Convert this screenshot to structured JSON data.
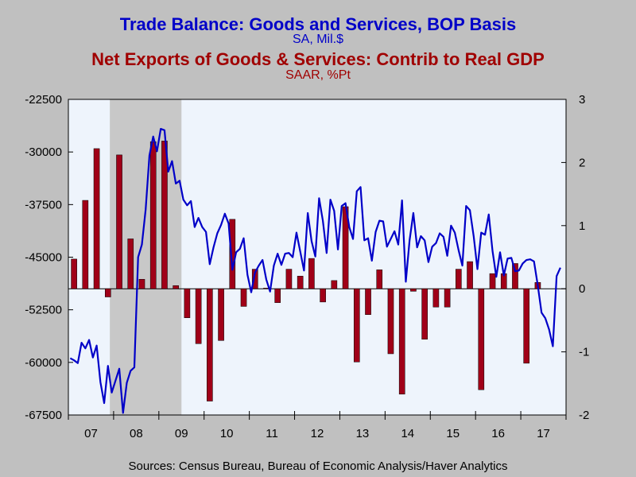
{
  "titles": {
    "line1": "Trade Balance:  Goods and Services, BOP Basis",
    "line1_sub": "SA, Mil.$",
    "line2": "Net Exports of Goods & Services: Contrib to Real GDP",
    "line2_sub": "SAAR, %Pt"
  },
  "source": "Sources:  Census Bureau, Bureau of Economic Analysis/Haver Analytics",
  "colors": {
    "background": "#c0c0c0",
    "plot_background": "#eef4fc",
    "recession": "#c8c8c8",
    "line": "#0000c8",
    "bars": "#a00018",
    "title1": "#0000c8",
    "title2": "#a00000"
  },
  "chart_data": {
    "type": "bar+line",
    "x_range": [
      2007.0,
      2018.0
    ],
    "left_axis": {
      "ylim": [
        -67500,
        -22500
      ],
      "ticks": [
        -22500,
        -30000,
        -37500,
        -45000,
        -52500,
        -60000,
        -67500
      ],
      "tick_labels": [
        "-22500",
        "-30000",
        "-37500",
        "-45000",
        "-52500",
        "-60000",
        "-67500"
      ]
    },
    "right_axis": {
      "ylim": [
        -2,
        3
      ],
      "ticks": [
        3,
        2,
        1,
        0,
        -1,
        -2
      ],
      "tick_labels": [
        "3",
        "2",
        "1",
        "0",
        "-1",
        "-2"
      ]
    },
    "x_tick_labels": [
      {
        "label": "07",
        "x": 2007.5
      },
      {
        "label": "08",
        "x": 2008.5
      },
      {
        "label": "09",
        "x": 2009.5
      },
      {
        "label": "10",
        "x": 2010.5
      },
      {
        "label": "11",
        "x": 2011.5
      },
      {
        "label": "12",
        "x": 2012.5
      },
      {
        "label": "13",
        "x": 2013.5
      },
      {
        "label": "14",
        "x": 2014.5
      },
      {
        "label": "15",
        "x": 2015.5
      },
      {
        "label": "16",
        "x": 2016.5
      },
      {
        "label": "17",
        "x": 2017.5
      }
    ],
    "recession": {
      "start": "2007-12",
      "end": "2009-06"
    },
    "series": [
      {
        "name": "Trade Balance: Goods and Services, BOP Basis (SA, Mil.$)",
        "axis": "left",
        "type": "line",
        "start": "2007-01",
        "frequency": "monthly",
        "values": [
          -59400,
          -59700,
          -60100,
          -57200,
          -58000,
          -56800,
          -59300,
          -57600,
          -62800,
          -65800,
          -60500,
          -64300,
          -62600,
          -60900,
          -67200,
          -62900,
          -61200,
          -60700,
          -45000,
          -43200,
          -38200,
          -30500,
          -27800,
          -29900,
          -26700,
          -26900,
          -32800,
          -31300,
          -34500,
          -34100,
          -36800,
          -37600,
          -37000,
          -40700,
          -39400,
          -40700,
          -41400,
          -46000,
          -43600,
          -41600,
          -40400,
          -38800,
          -40200,
          -46800,
          -44300,
          -43800,
          -42300,
          -47500,
          -50000,
          -47200,
          -46200,
          -45400,
          -48200,
          -49900,
          -46200,
          -44500,
          -46100,
          -44500,
          -44400,
          -45000,
          -41500,
          -44200,
          -46900,
          -38700,
          -42700,
          -44900,
          -36600,
          -39800,
          -44400,
          -36800,
          -38400,
          -43900,
          -37700,
          -37300,
          -40700,
          -42400,
          -35600,
          -35000,
          -42600,
          -42300,
          -45500,
          -41400,
          -39800,
          -39900,
          -43500,
          -42400,
          -41300,
          -43200,
          -36900,
          -48500,
          -42600,
          -38700,
          -43600,
          -42000,
          -42600,
          -45700,
          -43500,
          -43000,
          -41600,
          -42100,
          -44800,
          -40500,
          -41500,
          -44000,
          -46200,
          -37700,
          -38300,
          -42000,
          -46700,
          -41500,
          -41800,
          -38900,
          -44100,
          -47800,
          -44300,
          -47600,
          -45200,
          -45100,
          -47000,
          -46900,
          -45900,
          -45400,
          -45300,
          -45600,
          -49000,
          -52900,
          -53700,
          -55300,
          -57700,
          -47700,
          -46500
        ]
      },
      {
        "name": "Net Exports of Goods & Services: Contrib to Real GDP (SAAR, %Pt)",
        "axis": "right",
        "type": "bar",
        "start": "2007Q1",
        "frequency": "quarterly",
        "values": [
          0.47,
          1.4,
          2.22,
          -0.13,
          2.12,
          0.79,
          0.15,
          2.33,
          2.34,
          0.05,
          -0.46,
          -0.87,
          -1.78,
          -0.82,
          1.1,
          -0.28,
          0.31,
          0.01,
          -0.22,
          0.31,
          0.2,
          0.48,
          -0.21,
          0.13,
          1.3,
          -1.16,
          -0.41,
          0.3,
          -1.03,
          -1.67,
          -0.04,
          -0.8,
          -0.29,
          -0.29,
          0.31,
          0.43,
          -1.6,
          0.24,
          0.24,
          0.4,
          -1.18,
          0.1
        ]
      }
    ]
  }
}
